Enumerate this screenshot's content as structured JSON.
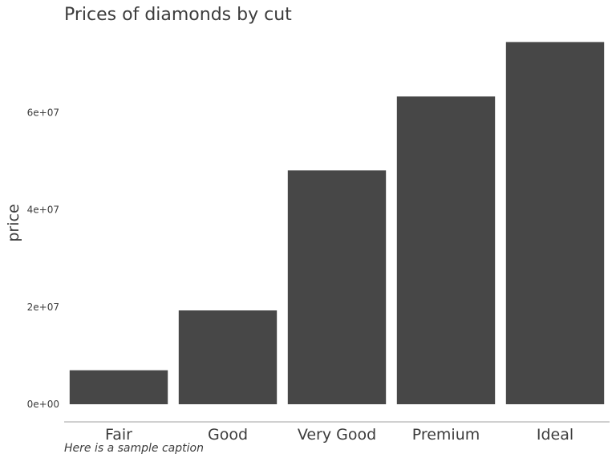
{
  "chart_data": {
    "type": "bar",
    "title": "Prices of diamonds by cut",
    "caption": "Here is a sample caption",
    "xlabel": "",
    "ylabel": "price",
    "categories": [
      "Fair",
      "Good",
      "Very Good",
      "Premium",
      "Ideal"
    ],
    "values": [
      7000000,
      19300000,
      48100000,
      63300000,
      74500000
    ],
    "y_ticks": [
      0,
      20000000,
      40000000,
      60000000
    ],
    "y_tick_labels": [
      "0e+00",
      "2e+07",
      "4e+07",
      "6e+07"
    ],
    "ylim": [
      0,
      78200000
    ],
    "grid": false,
    "bar_color": "#474747",
    "axis_color": "#b3b3b3"
  }
}
